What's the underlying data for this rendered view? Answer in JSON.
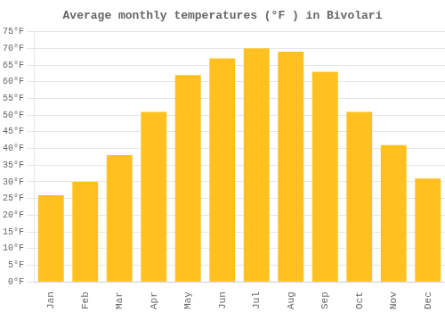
{
  "chart_data": {
    "type": "bar",
    "title": "Average monthly temperatures (°F ) in Bivolari",
    "categories": [
      "Jan",
      "Feb",
      "Mar",
      "Apr",
      "May",
      "Jun",
      "Jul",
      "Aug",
      "Sep",
      "Oct",
      "Nov",
      "Dec"
    ],
    "values": [
      26,
      30,
      38,
      51,
      62,
      67,
      70,
      69,
      63,
      51,
      41,
      31
    ],
    "color": "#FFC020",
    "ylim": [
      0,
      75
    ],
    "yticks": [
      {
        "value": 0,
        "label": "0°F"
      },
      {
        "value": 5,
        "label": "5°F"
      },
      {
        "value": 10,
        "label": "10°F"
      },
      {
        "value": 15,
        "label": "15°F"
      },
      {
        "value": 20,
        "label": "20°F"
      },
      {
        "value": 25,
        "label": "25°F"
      },
      {
        "value": 30,
        "label": "30°F"
      },
      {
        "value": 35,
        "label": "35°F"
      },
      {
        "value": 40,
        "label": "40°F"
      },
      {
        "value": 45,
        "label": "45°F"
      },
      {
        "value": 50,
        "label": "50°F"
      },
      {
        "value": 55,
        "label": "55°F"
      },
      {
        "value": 60,
        "label": "60°F"
      },
      {
        "value": 65,
        "label": "65°F"
      },
      {
        "value": 70,
        "label": "70°F"
      },
      {
        "value": 75,
        "label": "75°F"
      }
    ],
    "grid": true
  }
}
